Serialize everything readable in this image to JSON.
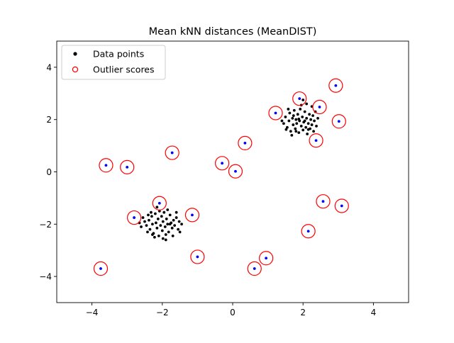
{
  "chart_data": {
    "type": "scatter",
    "title": "Mean kNN distances (MeanDIST)",
    "xlim": [
      -5,
      5
    ],
    "ylim": [
      -5,
      5
    ],
    "xticks": [
      -4,
      -2,
      0,
      2,
      4
    ],
    "yticks": [
      -4,
      -2,
      0,
      2,
      4
    ],
    "tick_labels_x": [
      "−4",
      "−2",
      "0",
      "2",
      "4"
    ],
    "tick_labels_y": [
      "−4",
      "−2",
      "0",
      "2",
      "4"
    ],
    "grid": false,
    "legend": {
      "placement": "top-left",
      "entries": [
        {
          "label": "Data points",
          "marker": "filled-dot",
          "color": "#000000"
        },
        {
          "label": "Outlier scores",
          "marker": "open-circle",
          "color": "#ff0000"
        }
      ]
    },
    "series": [
      {
        "name": "Data points",
        "color": "#000000",
        "points": [
          [
            -3.6,
            0.25
          ],
          [
            -3.0,
            0.18
          ],
          [
            -1.72,
            0.73
          ],
          [
            -3.75,
            -3.7
          ],
          [
            -1.0,
            -3.25
          ],
          [
            -1.15,
            -1.65
          ],
          [
            -2.08,
            -1.2
          ],
          [
            -2.8,
            -1.75
          ],
          [
            0.35,
            1.1
          ],
          [
            -0.3,
            0.33
          ],
          [
            0.08,
            0.02
          ],
          [
            0.95,
            -3.3
          ],
          [
            0.62,
            -3.7
          ],
          [
            2.15,
            -2.27
          ],
          [
            2.57,
            -1.13
          ],
          [
            3.1,
            -1.3
          ],
          [
            1.22,
            2.25
          ],
          [
            1.9,
            2.8
          ],
          [
            2.47,
            2.48
          ],
          [
            2.93,
            3.3
          ],
          [
            3.02,
            1.93
          ],
          [
            2.37,
            1.2
          ],
          [
            -2.5,
            -1.9
          ],
          [
            -2.45,
            -2.05
          ],
          [
            -2.38,
            -1.85
          ],
          [
            -2.35,
            -2.2
          ],
          [
            -2.3,
            -1.7
          ],
          [
            -2.28,
            -2.0
          ],
          [
            -2.25,
            -2.35
          ],
          [
            -2.2,
            -1.6
          ],
          [
            -2.18,
            -1.95
          ],
          [
            -2.15,
            -2.15
          ],
          [
            -2.12,
            -1.8
          ],
          [
            -2.1,
            -2.45
          ],
          [
            -2.05,
            -2.05
          ],
          [
            -2.02,
            -1.7
          ],
          [
            -2.0,
            -2.25
          ],
          [
            -1.98,
            -1.9
          ],
          [
            -1.95,
            -1.55
          ],
          [
            -1.92,
            -2.1
          ],
          [
            -1.9,
            -2.4
          ],
          [
            -1.88,
            -1.8
          ],
          [
            -1.85,
            -2.0
          ],
          [
            -1.82,
            -2.3
          ],
          [
            -1.78,
            -1.65
          ],
          [
            -1.75,
            -1.95
          ],
          [
            -1.72,
            -2.15
          ],
          [
            -1.68,
            -1.85
          ],
          [
            -1.65,
            -2.05
          ],
          [
            -1.6,
            -1.75
          ],
          [
            -1.55,
            -2.2
          ],
          [
            -1.52,
            -1.9
          ],
          [
            -2.6,
            -2.1
          ],
          [
            -2.55,
            -1.75
          ],
          [
            -2.42,
            -2.3
          ],
          [
            -2.32,
            -1.55
          ],
          [
            -2.22,
            -2.5
          ],
          [
            -2.08,
            -1.5
          ],
          [
            -1.98,
            -2.55
          ],
          [
            -1.85,
            -1.45
          ],
          [
            -1.7,
            -2.45
          ],
          [
            -1.45,
            -2.0
          ],
          [
            -2.65,
            -1.95
          ],
          [
            -2.4,
            -1.65
          ],
          [
            -2.15,
            -1.35
          ],
          [
            -1.9,
            -2.6
          ],
          [
            -1.6,
            -1.55
          ],
          [
            -1.5,
            -2.3
          ],
          [
            -2.28,
            -2.4
          ],
          [
            -1.78,
            -2.0
          ],
          [
            1.45,
            1.85
          ],
          [
            1.5,
            2.1
          ],
          [
            1.55,
            1.7
          ],
          [
            1.6,
            1.95
          ],
          [
            1.62,
            2.25
          ],
          [
            1.65,
            1.55
          ],
          [
            1.7,
            2.05
          ],
          [
            1.72,
            1.8
          ],
          [
            1.75,
            2.35
          ],
          [
            1.78,
            1.65
          ],
          [
            1.8,
            2.0
          ],
          [
            1.82,
            1.85
          ],
          [
            1.85,
            2.2
          ],
          [
            1.88,
            1.5
          ],
          [
            1.9,
            1.95
          ],
          [
            1.92,
            2.4
          ],
          [
            1.95,
            1.75
          ],
          [
            1.98,
            2.1
          ],
          [
            2.0,
            1.6
          ],
          [
            2.02,
            1.9
          ],
          [
            2.05,
            2.3
          ],
          [
            2.08,
            1.7
          ],
          [
            2.1,
            2.05
          ],
          [
            2.12,
            1.45
          ],
          [
            2.15,
            1.85
          ],
          [
            2.18,
            2.2
          ],
          [
            2.2,
            1.65
          ],
          [
            2.22,
            2.0
          ],
          [
            2.25,
            1.8
          ],
          [
            2.28,
            2.15
          ],
          [
            2.3,
            1.55
          ],
          [
            2.32,
            1.95
          ],
          [
            2.35,
            2.3
          ],
          [
            2.38,
            1.75
          ],
          [
            1.58,
            2.4
          ],
          [
            1.68,
            1.4
          ],
          [
            1.95,
            2.55
          ],
          [
            2.1,
            2.6
          ],
          [
            2.25,
            2.5
          ],
          [
            1.4,
            1.95
          ],
          [
            1.52,
            1.62
          ],
          [
            2.42,
            2.05
          ],
          [
            2.0,
            2.75
          ],
          [
            1.8,
            1.55
          ],
          [
            2.15,
            1.62
          ],
          [
            1.73,
            2.15
          ],
          [
            2.05,
            1.95
          ],
          [
            1.88,
            2.02
          ]
        ]
      },
      {
        "name": "Outlier scores",
        "color": "#ff0000",
        "marker": "open-circle",
        "points": [
          [
            -3.6,
            0.25
          ],
          [
            -3.0,
            0.18
          ],
          [
            -1.72,
            0.73
          ],
          [
            -3.75,
            -3.7
          ],
          [
            -1.0,
            -3.25
          ],
          [
            -1.15,
            -1.65
          ],
          [
            -2.08,
            -1.2
          ],
          [
            -2.8,
            -1.75
          ],
          [
            0.35,
            1.1
          ],
          [
            -0.3,
            0.33
          ],
          [
            0.08,
            0.02
          ],
          [
            0.95,
            -3.3
          ],
          [
            0.62,
            -3.7
          ],
          [
            2.15,
            -2.27
          ],
          [
            2.57,
            -1.13
          ],
          [
            3.1,
            -1.3
          ],
          [
            1.22,
            2.25
          ],
          [
            1.9,
            2.8
          ],
          [
            2.47,
            2.48
          ],
          [
            2.93,
            3.3
          ],
          [
            3.02,
            1.93
          ],
          [
            2.37,
            1.2
          ]
        ]
      }
    ],
    "highlight_color": "#0000ff"
  }
}
